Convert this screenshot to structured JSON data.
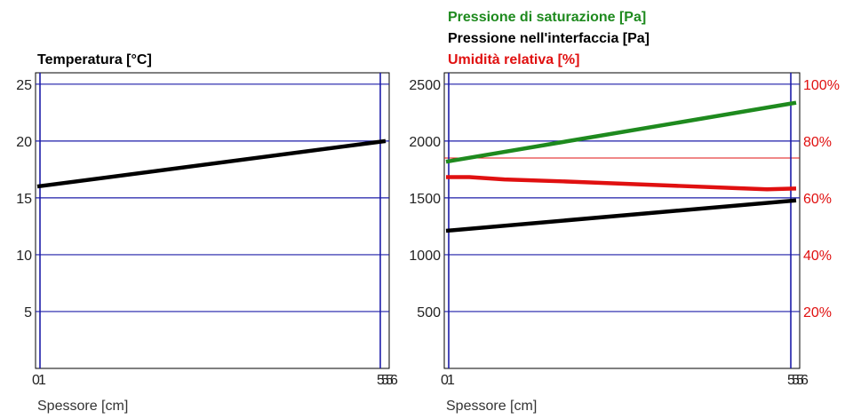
{
  "chart_data": [
    {
      "type": "line",
      "title": "Temperatura [°C]",
      "xlabel": "Spessore [cm]",
      "ylabel": "",
      "x_ticks": [
        "0",
        "1",
        "5",
        "5",
        "5",
        "6"
      ],
      "x_layer_boundaries": [
        0,
        1,
        5,
        5,
        5,
        6
      ],
      "xlim": [
        0,
        6
      ],
      "ylim": [
        0,
        26
      ],
      "y_ticks": [
        5,
        10,
        15,
        20,
        25
      ],
      "series": [
        {
          "color": "#000000",
          "x": [
            0,
            6
          ],
          "y": [
            16,
            20
          ]
        }
      ],
      "grid": true
    },
    {
      "type": "line",
      "titles": [
        {
          "text": "Pressione di saturazione [Pa]",
          "color": "#1e8a1e"
        },
        {
          "text": "Pressione nell'interfaccia [Pa]",
          "color": "#000000"
        },
        {
          "text": "Umidità relativa [%]",
          "color": "#e01010"
        }
      ],
      "xlabel": "Spessore [cm]",
      "x_ticks": [
        "0",
        "1",
        "5",
        "5",
        "5",
        "6"
      ],
      "x_layer_boundaries": [
        0,
        1,
        5,
        5,
        5,
        6
      ],
      "xlim": [
        0,
        6
      ],
      "ylim_left": [
        0,
        2600
      ],
      "y_ticks_left": [
        500,
        1000,
        1500,
        2000,
        2500
      ],
      "ylim_right": [
        0,
        104
      ],
      "y_ticks_right": [
        "20%",
        "40%",
        "60%",
        "80%",
        "100%"
      ],
      "y_ticks_right_values": [
        20,
        40,
        60,
        80,
        100
      ],
      "reference_line_right": 74,
      "series": [
        {
          "axis": "left",
          "color": "#1e8a1e",
          "x": [
            0,
            6
          ],
          "y": [
            1818,
            2337
          ]
        },
        {
          "axis": "left",
          "color": "#000000",
          "x": [
            0,
            6
          ],
          "y": [
            1210,
            1478
          ]
        },
        {
          "axis": "right",
          "color": "#e01010",
          "x": [
            0,
            0.4,
            1,
            2,
            3,
            4,
            5,
            5.5,
            6
          ],
          "y": [
            67.3,
            67.3,
            66.5,
            65.8,
            65.0,
            64.2,
            63.4,
            63.0,
            63.3
          ]
        }
      ],
      "grid": true
    }
  ]
}
